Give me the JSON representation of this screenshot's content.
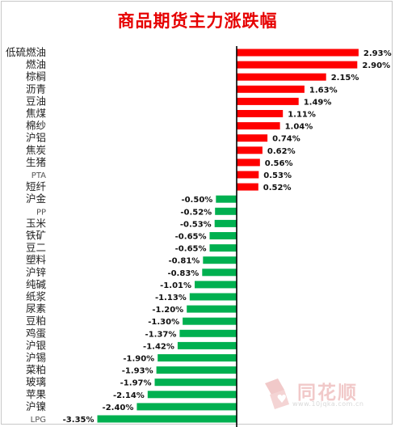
{
  "chart_data": {
    "type": "bar",
    "orientation": "horizontal",
    "title": "商品期货主力涨跌幅",
    "categories": [
      "低硫燃油",
      "燃油",
      "棕榈",
      "沥青",
      "豆油",
      "焦煤",
      "棉纱",
      "沪铝",
      "焦炭",
      "生猪",
      "PTA",
      "短纤",
      "沪金",
      "PP",
      "玉米",
      "铁矿",
      "豆二",
      "塑料",
      "沪锌",
      "纯碱",
      "纸浆",
      "尿素",
      "豆粕",
      "鸡蛋",
      "沪银",
      "沪锡",
      "菜粕",
      "玻璃",
      "苹果",
      "沪镍",
      "LPG"
    ],
    "values": [
      2.93,
      2.9,
      2.15,
      1.63,
      1.49,
      1.11,
      1.04,
      0.74,
      0.62,
      0.56,
      0.53,
      0.52,
      -0.5,
      -0.52,
      -0.53,
      -0.65,
      -0.65,
      -0.81,
      -0.83,
      -1.01,
      -1.13,
      -1.2,
      -1.3,
      -1.37,
      -1.42,
      -1.9,
      -1.93,
      -1.97,
      -2.14,
      -2.4,
      -3.35
    ],
    "value_labels": [
      "2.93%",
      "2.90%",
      "2.15%",
      "1.63%",
      "1.49%",
      "1.11%",
      "1.04%",
      "0.74%",
      "0.62%",
      "0.56%",
      "0.53%",
      "0.52%",
      "-0.50%",
      "-0.52%",
      "-0.53%",
      "-0.65%",
      "-0.65%",
      "-0.81%",
      "-0.83%",
      "-1.01%",
      "-1.13%",
      "-1.20%",
      "-1.30%",
      "-1.37%",
      "-1.42%",
      "-1.90%",
      "-1.93%",
      "-1.97%",
      "-2.14%",
      "-2.40%",
      "-3.35%"
    ],
    "unit": "%",
    "positive_color": "#ff0000",
    "negative_color": "#00b050",
    "grid": false,
    "legend": "none"
  },
  "watermark": {
    "brand": "同花顺",
    "url": "www.10jqka.com.cn",
    "color": "#f1c9c9"
  }
}
